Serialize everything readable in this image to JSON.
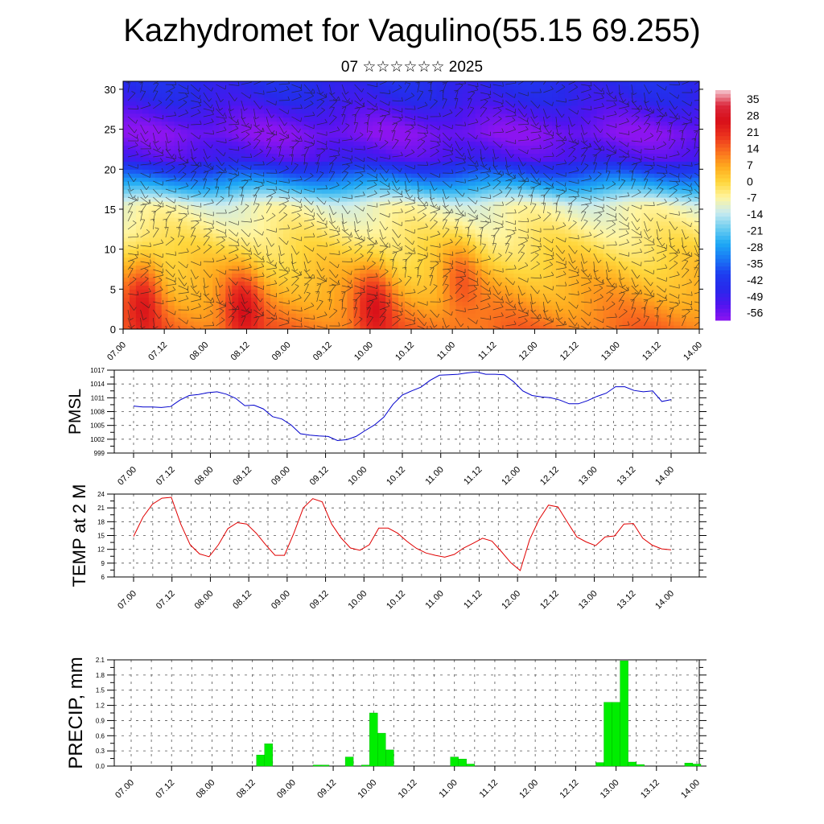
{
  "title": "Kazhydromet for Vagulino(55.15 69.255)",
  "subtitle": "07 ☆☆☆☆☆☆ 2025",
  "colors": {
    "pmsl_line": "#0000cc",
    "temp_line": "#e00000",
    "precip_bar": "#00ee00"
  },
  "chart_data": [
    {
      "type": "heatmap",
      "name": "temperature-wind-profile",
      "x_ticks": [
        "07.00",
        "07.12",
        "08.00",
        "08.12",
        "09.00",
        "09.12",
        "10.00",
        "10.12",
        "11.00",
        "11.12",
        "12.00",
        "12.12",
        "13.00",
        "13.12",
        "14.00"
      ],
      "y_ticks": [
        0,
        5,
        10,
        15,
        20,
        25,
        30
      ],
      "ylim": [
        0,
        31
      ],
      "colorbar_labels": [
        35,
        28,
        21,
        14,
        7,
        0,
        -7,
        -14,
        -21,
        -28,
        -35,
        -42,
        -49,
        -56
      ],
      "colorbar_range": [
        -63,
        42
      ],
      "warm_cores": [
        {
          "x": 0.5,
          "y": 4.5,
          "value": 30
        },
        {
          "x": 2.9,
          "y": 3.0,
          "value": 30
        },
        {
          "x": 6.1,
          "y": 3.5,
          "value": 29
        },
        {
          "x": 8.2,
          "y": 6.5,
          "value": 24
        }
      ],
      "cold_belt_height": 24.5,
      "cold_belt_value": -60,
      "freezing_height": 15.5
    },
    {
      "type": "line",
      "name": "pmsl",
      "ylabel": "PMSL",
      "x_ticks": [
        "07.00",
        "07.12",
        "08.00",
        "08.12",
        "09.00",
        "09.12",
        "10.00",
        "10.12",
        "11.00",
        "11.12",
        "12.00",
        "12.12",
        "13.00",
        "13.12",
        "14.00"
      ],
      "y_ticks": [
        999,
        1002,
        1005,
        1008,
        1011,
        1014,
        1017
      ],
      "ylim": [
        999,
        1017
      ],
      "values": [
        1009.2,
        1009.0,
        1009.0,
        1008.9,
        1009.1,
        1010.5,
        1011.5,
        1011.7,
        1012.1,
        1012.3,
        1011.8,
        1010.9,
        1009.3,
        1009.4,
        1008.6,
        1006.9,
        1006.4,
        1005.1,
        1003.2,
        1002.9,
        1002.7,
        1002.6,
        1001.7,
        1001.9,
        1002.6,
        1003.9,
        1005.1,
        1006.8,
        1009.6,
        1011.6,
        1012.5,
        1013.3,
        1014.8,
        1015.9,
        1016.0,
        1016.1,
        1016.4,
        1016.6,
        1016.1,
        1016.1,
        1016.0,
        1014.5,
        1012.5,
        1011.5,
        1011.2,
        1011.0,
        1010.5,
        1009.7,
        1009.7,
        1010.4,
        1011.3,
        1012.0,
        1013.4,
        1013.4,
        1012.6,
        1012.3,
        1012.5,
        1010.2,
        1010.6
      ]
    },
    {
      "type": "line",
      "name": "temp-2m",
      "ylabel": "TEMP at 2 M",
      "x_ticks": [
        "07.00",
        "07.12",
        "08.00",
        "08.12",
        "09.00",
        "09.12",
        "10.00",
        "10.12",
        "11.00",
        "11.12",
        "12.00",
        "12.12",
        "13.00",
        "13.12",
        "14.00"
      ],
      "y_ticks": [
        6,
        9,
        12,
        15,
        18,
        21,
        24
      ],
      "ylim": [
        6,
        24
      ],
      "values": [
        14.8,
        19.0,
        21.8,
        23.1,
        23.3,
        17.5,
        13.0,
        11.0,
        10.4,
        13.0,
        16.5,
        17.8,
        17.5,
        15.5,
        13.0,
        10.7,
        10.7,
        15.5,
        21.0,
        23.0,
        22.3,
        17.5,
        14.5,
        12.3,
        11.8,
        13.0,
        16.6,
        16.6,
        15.5,
        13.7,
        12.2,
        11.2,
        10.7,
        10.3,
        10.9,
        12.3,
        13.3,
        14.4,
        13.8,
        11.5,
        9.1,
        7.4,
        14.1,
        18.5,
        21.6,
        21.2,
        17.9,
        14.7,
        13.6,
        12.8,
        14.7,
        14.9,
        17.5,
        17.6,
        14.4,
        12.9,
        12.1,
        11.9
      ]
    },
    {
      "type": "bar",
      "name": "precip",
      "ylabel": "PRECIP, mm",
      "x_ticks": [
        "07.00",
        "07.12",
        "08.00",
        "08.12",
        "09.00",
        "09.12",
        "10.00",
        "10.12",
        "11.00",
        "11.12",
        "12.00",
        "12.12",
        "13.00",
        "13.12",
        "14.00"
      ],
      "y_ticks": [
        "0.0",
        "0.3",
        "0.6",
        "0.9",
        "1.2",
        "1.5",
        "1.8",
        "2.1"
      ],
      "ylim": [
        0,
        2.1
      ],
      "values": [
        0,
        0,
        0,
        0,
        0,
        0,
        0,
        0,
        0,
        0,
        0,
        0,
        0,
        0,
        0,
        0,
        0.22,
        0.44,
        0,
        0,
        0,
        0,
        0,
        0.02,
        0.02,
        0,
        0,
        0.18,
        0,
        0.02,
        1.05,
        0.65,
        0.32,
        0,
        0,
        0,
        0,
        0,
        0,
        0,
        0.18,
        0.14,
        0.04,
        0,
        0,
        0,
        0,
        0,
        0,
        0,
        0,
        0,
        0,
        0,
        0,
        0,
        0,
        0,
        0.07,
        1.26,
        1.26,
        2.08,
        0.08,
        0.03,
        0,
        0,
        0,
        0,
        0,
        0.06,
        0.04
      ]
    }
  ]
}
